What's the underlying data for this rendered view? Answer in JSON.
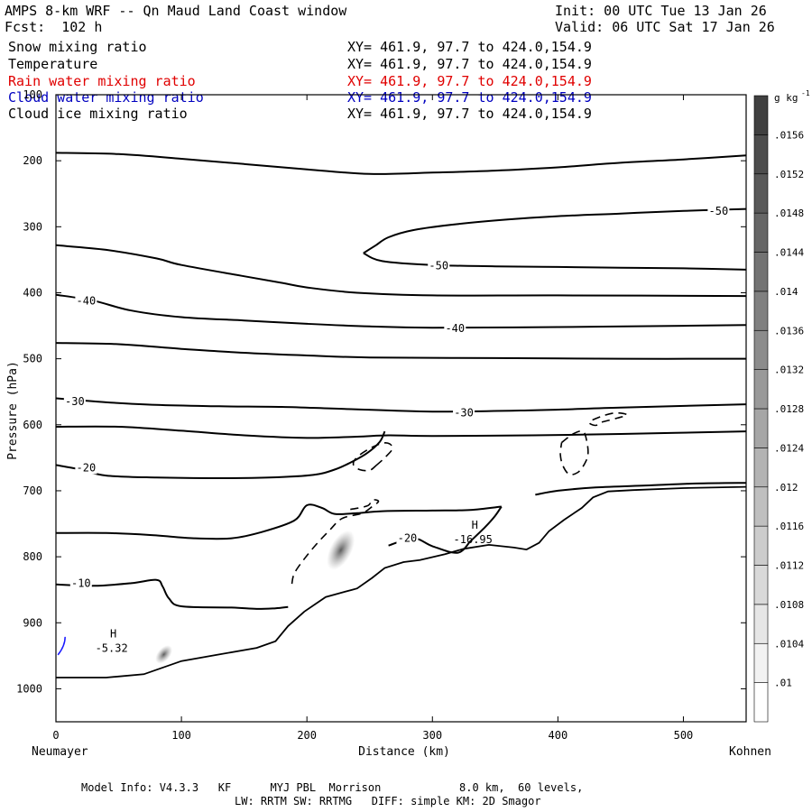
{
  "header": {
    "title": "AMPS 8-km WRF -- Qn Maud Land Coast window",
    "init": "Init: 00 UTC Tue 13 Jan 26",
    "fcst": "Fcst:  102 h",
    "valid": "Valid: 06 UTC Sat 17 Jan 26"
  },
  "fields": [
    {
      "name": "Snow mixing ratio",
      "xy": "XY= 461.9, 97.7 to 424.0,154.9",
      "color": "#000000"
    },
    {
      "name": "Temperature",
      "xy": "XY= 461.9, 97.7 to 424.0,154.9",
      "color": "#000000"
    },
    {
      "name": "Rain water mixing ratio",
      "xy": "XY= 461.9, 97.7 to 424.0,154.9",
      "color": "#e00000"
    },
    {
      "name": "Cloud water mixing ratio",
      "xy": "XY= 461.9, 97.7 to 424.0,154.9",
      "color": "#0000c0"
    },
    {
      "name": "Cloud ice mixing ratio",
      "xy": "XY= 461.9, 97.7 to 424.0,154.9",
      "color": "#000000"
    }
  ],
  "footer": {
    "line1": "Model Info: V4.3.3   KF      MYJ PBL  Morrison            8.0 km,  60 levels,",
    "line2": "LW: RRTM SW: RRTMG   DIFF: simple KM: 2D Smagor"
  },
  "chart_data": {
    "type": "contour-cross-section",
    "xlabel": "Distance (km)",
    "ylabel": "Pressure (hPa)",
    "xlim": [
      0,
      550
    ],
    "ylim": [
      1050,
      100
    ],
    "x_ticks": [
      0,
      100,
      200,
      300,
      400,
      500
    ],
    "y_ticks": [
      100,
      200,
      300,
      400,
      500,
      600,
      700,
      800,
      900,
      1000
    ],
    "x_endpoints": {
      "left": "Neumayer",
      "right": "Kohnen"
    },
    "colorbar": {
      "unit": "g kg",
      "unit_exp": "-1",
      "ticks": [
        ".01",
        ".0104",
        ".0108",
        ".0112",
        ".0116",
        ".012",
        ".0124",
        ".0128",
        ".0132",
        ".0136",
        ".014",
        ".0144",
        ".0148",
        ".0152",
        ".0156"
      ]
    },
    "contour_labels": [
      {
        "text": "-50",
        "x": 528,
        "p": 276
      },
      {
        "text": "-50",
        "x": 305,
        "p": 359
      },
      {
        "text": "-40",
        "x": 24,
        "p": 412
      },
      {
        "text": "-40",
        "x": 318,
        "p": 454
      },
      {
        "text": "-30",
        "x": 15,
        "p": 565
      },
      {
        "text": "-30",
        "x": 325,
        "p": 582
      },
      {
        "text": "-20",
        "x": 24,
        "p": 665
      },
      {
        "text": "-20",
        "x": 280,
        "p": 772
      },
      {
        "text": "-10",
        "x": 20,
        "p": 840
      }
    ],
    "extrema": [
      {
        "type": "H",
        "value": "-5.32",
        "x": 40,
        "p": 917
      },
      {
        "type": "H",
        "value": "-16.95",
        "x": 328,
        "p": 752
      }
    ],
    "isotherms": [
      {
        "label": "-50",
        "points": [
          [
            0,
            188
          ],
          [
            50,
            190
          ],
          [
            100,
            197
          ],
          [
            150,
            205
          ],
          [
            200,
            213
          ],
          [
            250,
            220
          ],
          [
            300,
            218
          ],
          [
            350,
            215
          ],
          [
            400,
            210
          ],
          [
            450,
            203
          ],
          [
            500,
            198
          ],
          [
            550,
            192
          ]
        ]
      },
      {
        "label": "-50",
        "points": [
          [
            245,
            340
          ],
          [
            255,
            328
          ],
          [
            265,
            316
          ],
          [
            285,
            305
          ],
          [
            320,
            296
          ],
          [
            360,
            289
          ],
          [
            400,
            284
          ],
          [
            450,
            280
          ],
          [
            500,
            276
          ],
          [
            550,
            273
          ]
        ]
      },
      {
        "label": "-50",
        "points": [
          [
            245,
            340
          ],
          [
            260,
            352
          ],
          [
            300,
            358
          ],
          [
            350,
            360
          ],
          [
            400,
            361
          ],
          [
            450,
            362
          ],
          [
            500,
            363
          ],
          [
            550,
            365
          ]
        ]
      },
      {
        "label": "-40",
        "points": [
          [
            0,
            328
          ],
          [
            40,
            335
          ],
          [
            80,
            348
          ],
          [
            100,
            358
          ],
          [
            150,
            375
          ],
          [
            180,
            385
          ],
          [
            200,
            392
          ],
          [
            240,
            400
          ],
          [
            300,
            404
          ],
          [
            400,
            404
          ],
          [
            550,
            405
          ]
        ]
      },
      {
        "label": "-40",
        "points": [
          [
            0,
            403
          ],
          [
            30,
            412
          ],
          [
            60,
            427
          ],
          [
            100,
            437
          ],
          [
            150,
            442
          ],
          [
            200,
            447
          ],
          [
            250,
            451
          ],
          [
            300,
            453
          ],
          [
            400,
            452
          ],
          [
            500,
            450
          ],
          [
            550,
            449
          ]
        ]
      },
      {
        "label": "-30",
        "points": [
          [
            0,
            476
          ],
          [
            50,
            478
          ],
          [
            100,
            485
          ],
          [
            150,
            491
          ],
          [
            200,
            495
          ],
          [
            250,
            498
          ],
          [
            350,
            499
          ],
          [
            450,
            500
          ],
          [
            550,
            500
          ]
        ]
      },
      {
        "label": "-30",
        "points": [
          [
            0,
            560
          ],
          [
            40,
            566
          ],
          [
            80,
            570
          ],
          [
            130,
            572
          ],
          [
            180,
            573
          ],
          [
            230,
            576
          ],
          [
            300,
            580
          ],
          [
            380,
            578
          ],
          [
            450,
            574
          ],
          [
            550,
            569
          ]
        ]
      },
      {
        "label": "-20",
        "points": [
          [
            0,
            603
          ],
          [
            50,
            603
          ],
          [
            100,
            609
          ],
          [
            150,
            616
          ],
          [
            200,
            620
          ],
          [
            240,
            618
          ],
          [
            265,
            616
          ],
          [
            300,
            617
          ],
          [
            380,
            616
          ],
          [
            450,
            614
          ],
          [
            550,
            610
          ]
        ]
      },
      {
        "label": "-20",
        "points": [
          [
            0,
            661
          ],
          [
            20,
            668
          ],
          [
            40,
            677
          ],
          [
            80,
            680
          ],
          [
            130,
            681
          ],
          [
            170,
            680
          ],
          [
            205,
            676
          ],
          [
            222,
            668
          ],
          [
            235,
            657
          ],
          [
            248,
            643
          ],
          [
            258,
            626
          ],
          [
            262,
            610
          ]
        ]
      },
      {
        "label": "-20",
        "points": [
          [
            0,
            764
          ],
          [
            40,
            764
          ],
          [
            75,
            767
          ],
          [
            110,
            772
          ],
          [
            140,
            772
          ],
          [
            165,
            762
          ],
          [
            190,
            745
          ],
          [
            200,
            722
          ],
          [
            212,
            726
          ],
          [
            222,
            735
          ],
          [
            240,
            734
          ],
          [
            260,
            731
          ],
          [
            300,
            730
          ],
          [
            330,
            729
          ],
          [
            355,
            724
          ]
        ]
      },
      {
        "label": "-20",
        "points": [
          [
            355,
            724
          ],
          [
            350,
            738
          ],
          [
            342,
            755
          ],
          [
            330,
            777
          ]
        ]
      },
      {
        "label": "-20",
        "points": [
          [
            265,
            783
          ],
          [
            285,
            772
          ],
          [
            300,
            784
          ],
          [
            320,
            794
          ],
          [
            330,
            777
          ]
        ]
      },
      {
        "label": "-10",
        "points": [
          [
            0,
            842
          ],
          [
            30,
            844
          ],
          [
            60,
            840
          ],
          [
            80,
            835
          ],
          [
            85,
            845
          ],
          [
            90,
            863
          ],
          [
            100,
            875
          ],
          [
            140,
            877
          ],
          [
            160,
            879
          ],
          [
            175,
            878
          ],
          [
            185,
            876
          ]
        ]
      },
      {
        "label": "-10",
        "points": [
          [
            382,
            706
          ],
          [
            400,
            700
          ],
          [
            430,
            695
          ],
          [
            470,
            692
          ],
          [
            510,
            689
          ],
          [
            550,
            688
          ]
        ]
      }
    ],
    "terrain": [
      [
        0,
        983
      ],
      [
        40,
        983
      ],
      [
        70,
        978
      ],
      [
        100,
        958
      ],
      [
        130,
        948
      ],
      [
        160,
        938
      ],
      [
        175,
        928
      ],
      [
        185,
        905
      ],
      [
        198,
        883
      ],
      [
        215,
        861
      ],
      [
        236,
        850
      ],
      [
        240,
        848
      ],
      [
        252,
        832
      ],
      [
        262,
        817
      ],
      [
        277,
        808
      ],
      [
        290,
        805
      ],
      [
        310,
        796
      ],
      [
        325,
        788
      ],
      [
        345,
        782
      ],
      [
        365,
        786
      ],
      [
        375,
        789
      ],
      [
        385,
        779
      ],
      [
        393,
        761
      ],
      [
        405,
        744
      ],
      [
        419,
        726
      ],
      [
        428,
        710
      ],
      [
        440,
        701
      ],
      [
        460,
        699
      ],
      [
        500,
        696
      ],
      [
        550,
        694
      ]
    ],
    "cloud_ice_dashed": [
      [
        [
          255,
          662
        ],
        [
          262,
          650
        ],
        [
          268,
          637
        ],
        [
          266,
          629
        ],
        [
          260,
          628
        ],
        [
          250,
          636
        ],
        [
          240,
          649
        ],
        [
          237,
          660
        ],
        [
          242,
          668
        ],
        [
          250,
          669
        ],
        [
          255,
          662
        ]
      ],
      [
        [
          188,
          841
        ],
        [
          190,
          825
        ],
        [
          198,
          803
        ],
        [
          208,
          780
        ],
        [
          218,
          760
        ],
        [
          228,
          742
        ],
        [
          244,
          734
        ],
        [
          252,
          724
        ],
        [
          257,
          716
        ],
        [
          252,
          714
        ],
        [
          248,
          723
        ],
        [
          232,
          729
        ]
      ],
      [
        [
          435,
          596
        ],
        [
          447,
          590
        ],
        [
          455,
          585
        ],
        [
          446,
          582
        ],
        [
          435,
          587
        ],
        [
          425,
          596
        ],
        [
          430,
          601
        ],
        [
          435,
          596
        ]
      ],
      [
        [
          403,
          627
        ],
        [
          412,
          614
        ],
        [
          420,
          610
        ],
        [
          423,
          625
        ],
        [
          424,
          645
        ],
        [
          421,
          660
        ],
        [
          416,
          672
        ],
        [
          409,
          675
        ],
        [
          404,
          662
        ],
        [
          402,
          645
        ],
        [
          403,
          627
        ]
      ]
    ],
    "snow_shading": [
      {
        "x": 227,
        "p": 790,
        "level": "0.0124"
      },
      {
        "x": 86,
        "p": 948,
        "level": "0.0108"
      }
    ],
    "cloud_water_marks": [
      {
        "x": 3,
        "p": 935
      }
    ]
  }
}
